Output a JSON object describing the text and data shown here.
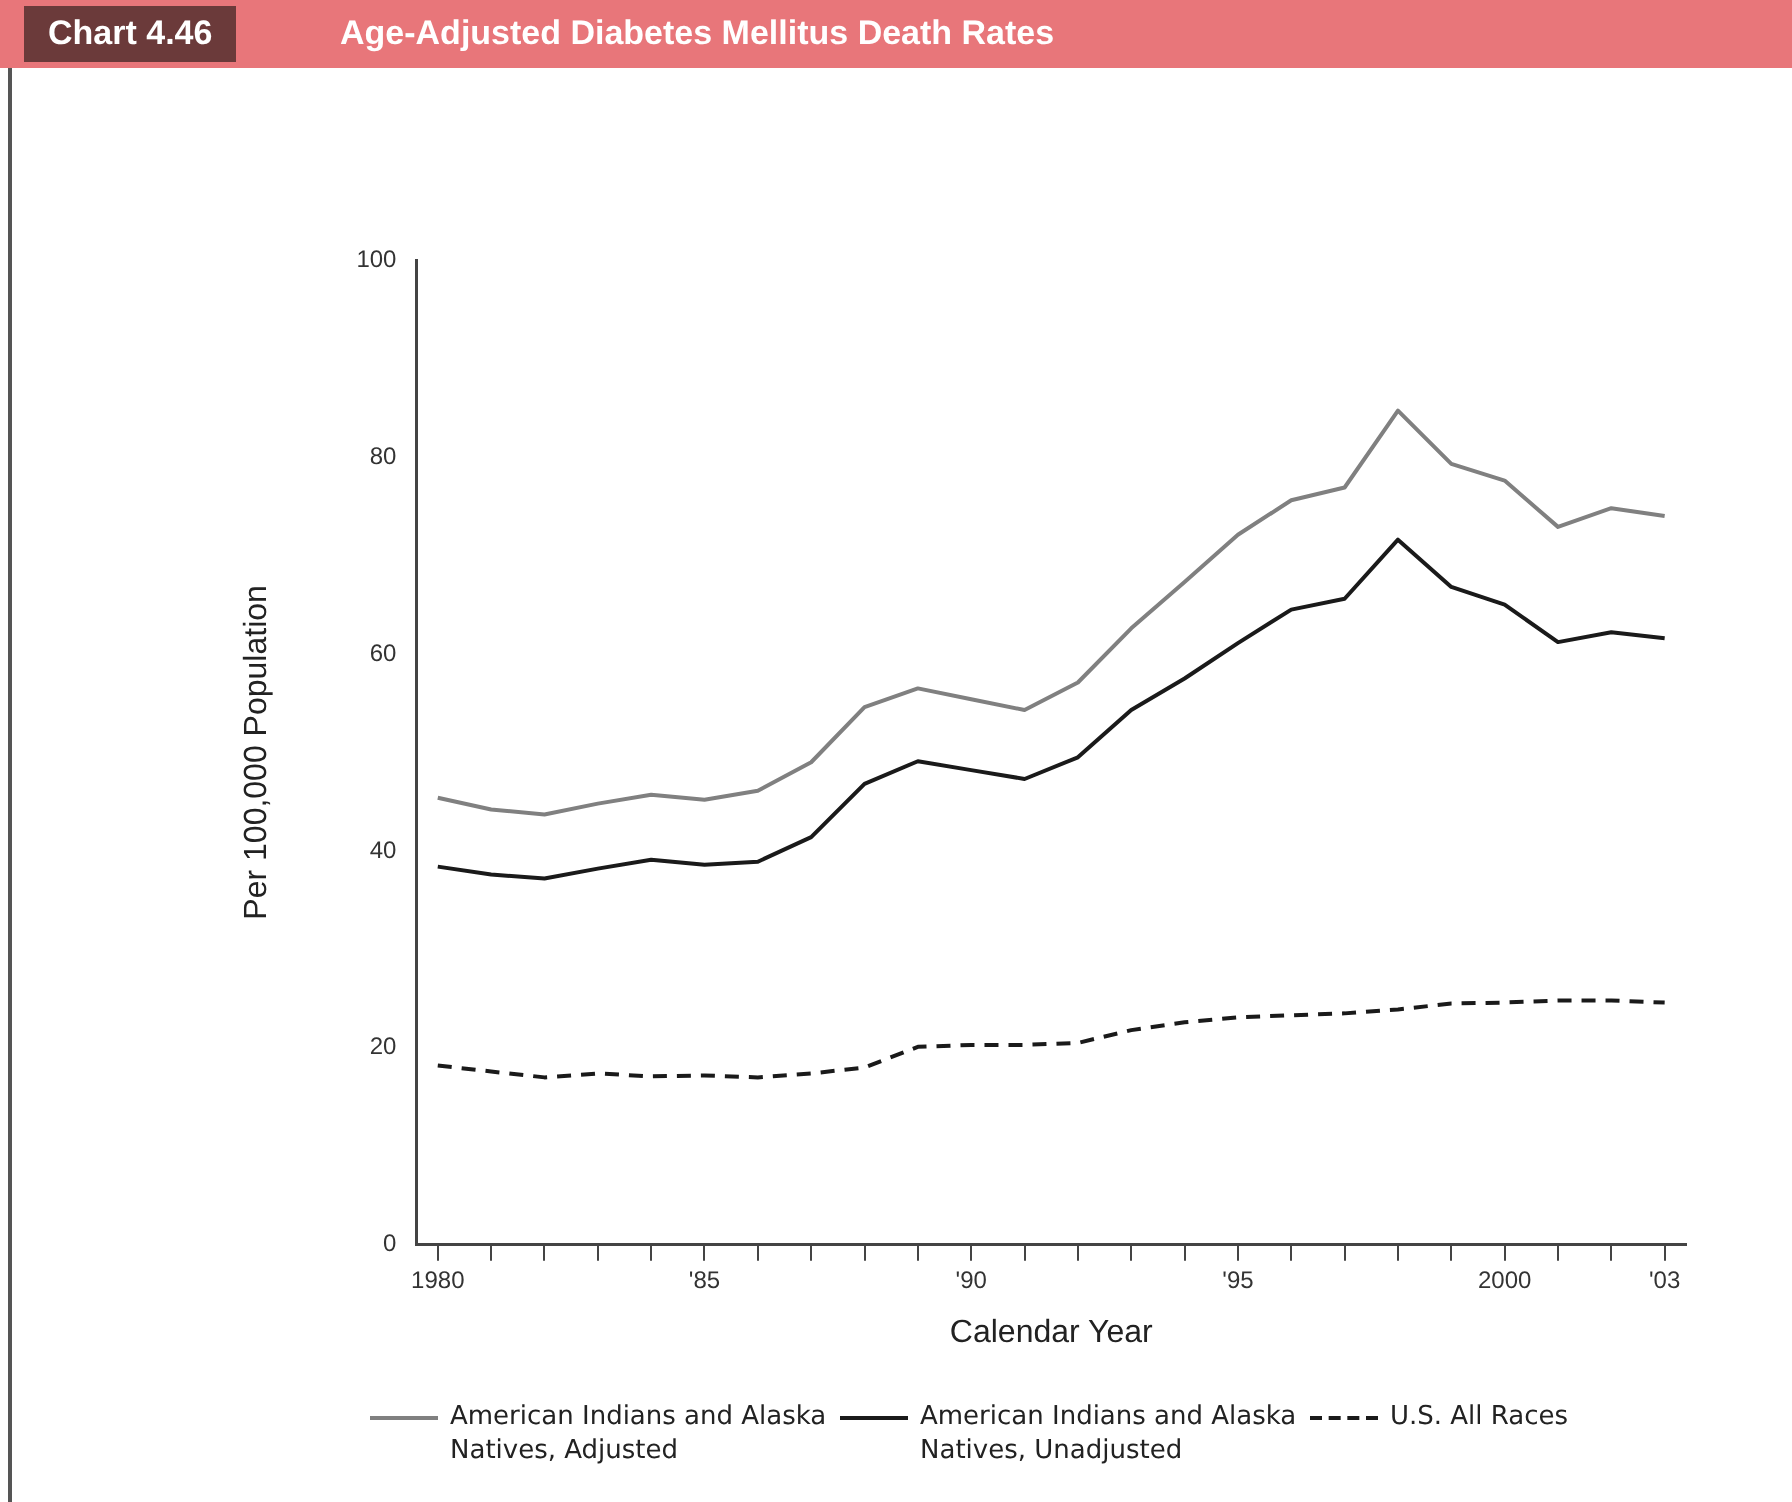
{
  "chart_data": {
    "type": "line",
    "title": "Age-Adjusted Diabetes Mellitus Death Rates",
    "annotations": [
      "Chart 4.46"
    ],
    "xlabel": "Calendar Year",
    "ylabel": "Per 100,000 Population",
    "x": [
      1980,
      1981,
      1982,
      1983,
      1984,
      1985,
      1986,
      1987,
      1988,
      1989,
      1990,
      1991,
      1992,
      1993,
      1994,
      1995,
      1996,
      1997,
      1998,
      1999,
      2000,
      2001,
      2002,
      2003
    ],
    "series": [
      {
        "name": "American Indians and Alaska Natives, Adjusted",
        "color": "#808080",
        "line_style": "solid",
        "values": [
          45.4,
          44.2,
          43.7,
          44.8,
          45.7,
          45.2,
          46.1,
          49.0,
          54.6,
          56.5,
          55.4,
          54.3,
          57.1,
          62.6,
          67.3,
          72.1,
          75.6,
          76.9,
          84.7,
          79.3,
          77.6,
          72.9,
          74.8,
          74.0
        ]
      },
      {
        "name": "American Indians and Alaska Natives, Unadjusted",
        "color": "#1a1a1a",
        "line_style": "solid",
        "values": [
          38.4,
          37.6,
          37.2,
          38.2,
          39.1,
          38.6,
          38.9,
          41.4,
          46.8,
          49.1,
          48.2,
          47.3,
          49.5,
          54.3,
          57.5,
          61.1,
          64.5,
          65.6,
          71.6,
          66.8,
          65.0,
          61.2,
          62.2,
          61.6
        ]
      },
      {
        "name": "U.S. All Races",
        "color": "#1a1a1a",
        "line_style": "dashed",
        "values": [
          18.2,
          17.6,
          17.0,
          17.4,
          17.1,
          17.2,
          17.0,
          17.4,
          18.0,
          20.1,
          20.3,
          20.3,
          20.5,
          21.8,
          22.6,
          23.1,
          23.3,
          23.5,
          23.9,
          24.5,
          24.6,
          24.8,
          24.8,
          24.6
        ]
      }
    ],
    "xlim": [
      1979.6,
      2003.4
    ],
    "xticks": [
      {
        "value": 1980,
        "label": "1980"
      },
      {
        "value": 1981,
        "label": null
      },
      {
        "value": 1982,
        "label": null
      },
      {
        "value": 1983,
        "label": null
      },
      {
        "value": 1984,
        "label": null
      },
      {
        "value": 1985,
        "label": "'85"
      },
      {
        "value": 1986,
        "label": null
      },
      {
        "value": 1987,
        "label": null
      },
      {
        "value": 1988,
        "label": null
      },
      {
        "value": 1989,
        "label": null
      },
      {
        "value": 1990,
        "label": "'90"
      },
      {
        "value": 1991,
        "label": null
      },
      {
        "value": 1992,
        "label": null
      },
      {
        "value": 1993,
        "label": null
      },
      {
        "value": 1994,
        "label": null
      },
      {
        "value": 1995,
        "label": "'95"
      },
      {
        "value": 1996,
        "label": null
      },
      {
        "value": 1997,
        "label": null
      },
      {
        "value": 1998,
        "label": null
      },
      {
        "value": 1999,
        "label": null
      },
      {
        "value": 2000,
        "label": "2000"
      },
      {
        "value": 2001,
        "label": null
      },
      {
        "value": 2002,
        "label": null
      },
      {
        "value": 2003,
        "label": "'03"
      }
    ],
    "ylim": [
      0,
      100
    ],
    "yticks": [
      0,
      20,
      40,
      60,
      80,
      100
    ],
    "grid": false,
    "legend": "bottom",
    "marker": "none"
  }
}
